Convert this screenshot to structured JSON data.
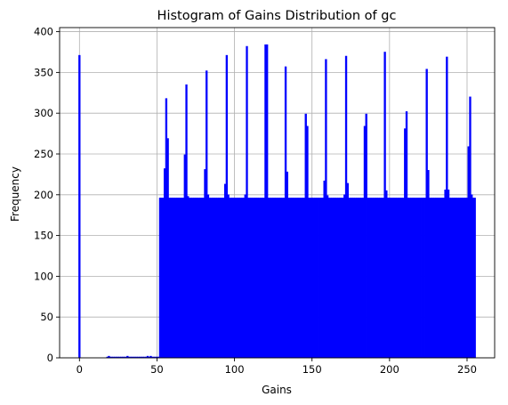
{
  "chart_data": {
    "type": "bar",
    "title": "Histogram of Gains Distribution of gc",
    "xlabel": "Gains",
    "ylabel": "Frequency",
    "xlim": [
      -12.8,
      267.8
    ],
    "ylim": [
      0,
      405
    ],
    "xticks": [
      0,
      50,
      100,
      150,
      200,
      250
    ],
    "yticks": [
      0,
      50,
      100,
      150,
      200,
      250,
      300,
      350,
      400
    ],
    "grid": true,
    "color": "#0000ff",
    "edgecolor": "#0000ff",
    "base_level": 196,
    "base_range": [
      52,
      255
    ],
    "bins": [
      {
        "x": 0,
        "y": 371
      },
      {
        "x": 18,
        "y": 1
      },
      {
        "x": 19,
        "y": 2
      },
      {
        "x": 20,
        "y": 1
      },
      {
        "x": 21,
        "y": 1
      },
      {
        "x": 22,
        "y": 1
      },
      {
        "x": 23,
        "y": 1
      },
      {
        "x": 24,
        "y": 1
      },
      {
        "x": 25,
        "y": 1
      },
      {
        "x": 26,
        "y": 1
      },
      {
        "x": 27,
        "y": 1
      },
      {
        "x": 28,
        "y": 1
      },
      {
        "x": 29,
        "y": 1
      },
      {
        "x": 30,
        "y": 1
      },
      {
        "x": 31,
        "y": 2
      },
      {
        "x": 32,
        "y": 1
      },
      {
        "x": 33,
        "y": 1
      },
      {
        "x": 34,
        "y": 1
      },
      {
        "x": 35,
        "y": 1
      },
      {
        "x": 36,
        "y": 1
      },
      {
        "x": 37,
        "y": 1
      },
      {
        "x": 38,
        "y": 1
      },
      {
        "x": 39,
        "y": 1
      },
      {
        "x": 40,
        "y": 1
      },
      {
        "x": 41,
        "y": 1
      },
      {
        "x": 42,
        "y": 1
      },
      {
        "x": 43,
        "y": 1
      },
      {
        "x": 44,
        "y": 2
      },
      {
        "x": 45,
        "y": 1
      },
      {
        "x": 46,
        "y": 2
      },
      {
        "x": 47,
        "y": 1
      },
      {
        "x": 48,
        "y": 1
      },
      {
        "x": 49,
        "y": 1
      },
      {
        "x": 50,
        "y": 1
      },
      {
        "x": 51,
        "y": 1
      }
    ],
    "peaks": [
      {
        "x": 55,
        "y": 232
      },
      {
        "x": 56,
        "y": 318
      },
      {
        "x": 57,
        "y": 269
      },
      {
        "x": 68,
        "y": 249
      },
      {
        "x": 69,
        "y": 335
      },
      {
        "x": 70,
        "y": 198
      },
      {
        "x": 81,
        "y": 231
      },
      {
        "x": 82,
        "y": 352
      },
      {
        "x": 83,
        "y": 200
      },
      {
        "x": 94,
        "y": 213
      },
      {
        "x": 95,
        "y": 371
      },
      {
        "x": 96,
        "y": 200
      },
      {
        "x": 107,
        "y": 200
      },
      {
        "x": 108,
        "y": 382
      },
      {
        "x": 120,
        "y": 384
      },
      {
        "x": 121,
        "y": 384
      },
      {
        "x": 133,
        "y": 357
      },
      {
        "x": 134,
        "y": 228
      },
      {
        "x": 146,
        "y": 299
      },
      {
        "x": 147,
        "y": 284
      },
      {
        "x": 158,
        "y": 217
      },
      {
        "x": 159,
        "y": 366
      },
      {
        "x": 160,
        "y": 199
      },
      {
        "x": 171,
        "y": 200
      },
      {
        "x": 172,
        "y": 370
      },
      {
        "x": 173,
        "y": 214
      },
      {
        "x": 184,
        "y": 284
      },
      {
        "x": 185,
        "y": 299
      },
      {
        "x": 197,
        "y": 375
      },
      {
        "x": 198,
        "y": 205
      },
      {
        "x": 210,
        "y": 281
      },
      {
        "x": 211,
        "y": 302
      },
      {
        "x": 224,
        "y": 354
      },
      {
        "x": 225,
        "y": 230
      },
      {
        "x": 236,
        "y": 206
      },
      {
        "x": 237,
        "y": 369
      },
      {
        "x": 238,
        "y": 206
      },
      {
        "x": 251,
        "y": 259
      },
      {
        "x": 252,
        "y": 320
      },
      {
        "x": 253,
        "y": 200
      }
    ]
  }
}
